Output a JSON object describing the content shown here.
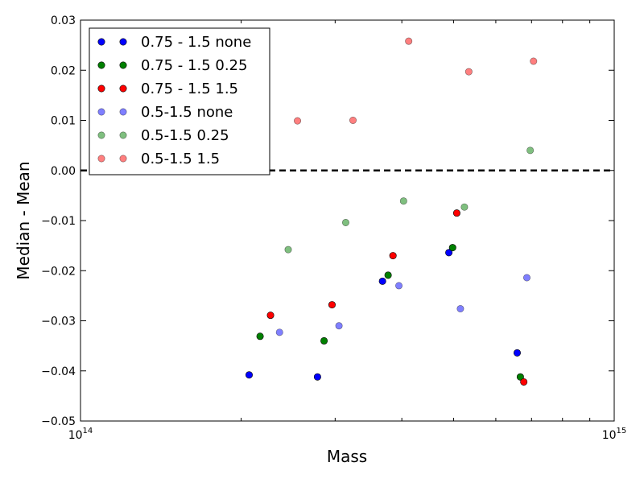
{
  "chart_data": {
    "type": "scatter",
    "title": "",
    "xlabel": "Mass",
    "ylabel": "Median - Mean",
    "xscale": "log",
    "xlim": [
      100000000000000.0,
      1000000000000000.0
    ],
    "ylim": [
      -0.05,
      0.03
    ],
    "x_tick_labels": [
      {
        "value": 100000000000000.0,
        "base": "10",
        "exp": "14"
      },
      {
        "value": 1000000000000000.0,
        "base": "10",
        "exp": "15"
      }
    ],
    "y_ticks": [
      {
        "value": -0.05,
        "label": "−0.05"
      },
      {
        "value": -0.04,
        "label": "−0.04"
      },
      {
        "value": -0.03,
        "label": "−0.03"
      },
      {
        "value": -0.02,
        "label": "−0.02"
      },
      {
        "value": -0.01,
        "label": "−0.01"
      },
      {
        "value": 0.0,
        "label": "0.00"
      },
      {
        "value": 0.01,
        "label": "0.01"
      },
      {
        "value": 0.02,
        "label": "0.02"
      },
      {
        "value": 0.03,
        "label": "0.03"
      }
    ],
    "reference_line": {
      "y": 0.0,
      "style": "dashed",
      "color": "#000000"
    },
    "grid": false,
    "legend_position": "top-left",
    "series": [
      {
        "name": "0.75 - 1.5 none",
        "color": "#0000ff",
        "alpha": 1.0,
        "points": [
          [
            207000000000000.0,
            -0.0408
          ],
          [
            278000000000000.0,
            -0.0412
          ],
          [
            368000000000000.0,
            -0.0221
          ],
          [
            490000000000000.0,
            -0.0164
          ],
          [
            658000000000000.0,
            -0.0364
          ]
        ]
      },
      {
        "name": "0.75 - 1.5 0.25",
        "color": "#008000",
        "alpha": 1.0,
        "points": [
          [
            217000000000000.0,
            -0.0331
          ],
          [
            286000000000000.0,
            -0.034
          ],
          [
            377000000000000.0,
            -0.0209
          ],
          [
            498000000000000.0,
            -0.0154
          ],
          [
            667000000000000.0,
            -0.0412
          ]
        ]
      },
      {
        "name": "0.75 - 1.5 1.5",
        "color": "#ff0000",
        "alpha": 1.0,
        "points": [
          [
            227000000000000.0,
            -0.0289
          ],
          [
            296000000000000.0,
            -0.0268
          ],
          [
            385000000000000.0,
            -0.017
          ],
          [
            507000000000000.0,
            -0.0085
          ],
          [
            677000000000000.0,
            -0.0422
          ]
        ]
      },
      {
        "name": "0.5-1.5 none",
        "color": "#0000ff",
        "alpha": 0.5,
        "points": [
          [
            236000000000000.0,
            -0.0323
          ],
          [
            305000000000000.0,
            -0.031
          ],
          [
            395000000000000.0,
            -0.023
          ],
          [
            515000000000000.0,
            -0.0276
          ],
          [
            686000000000000.0,
            -0.0214
          ]
        ]
      },
      {
        "name": "0.5-1.5 0.25",
        "color": "#008000",
        "alpha": 0.5,
        "points": [
          [
            245000000000000.0,
            -0.0158
          ],
          [
            314000000000000.0,
            -0.0104
          ],
          [
            403000000000000.0,
            -0.0061
          ],
          [
            524000000000000.0,
            -0.0073
          ],
          [
            696000000000000.0,
            0.004
          ]
        ]
      },
      {
        "name": "0.5-1.5 1.5",
        "color": "#ff0000",
        "alpha": 0.5,
        "points": [
          [
            255000000000000.0,
            0.0099
          ],
          [
            324000000000000.0,
            0.01
          ],
          [
            412000000000000.0,
            0.0258
          ],
          [
            534000000000000.0,
            0.0197
          ],
          [
            706000000000000.0,
            0.0218
          ]
        ]
      }
    ]
  }
}
